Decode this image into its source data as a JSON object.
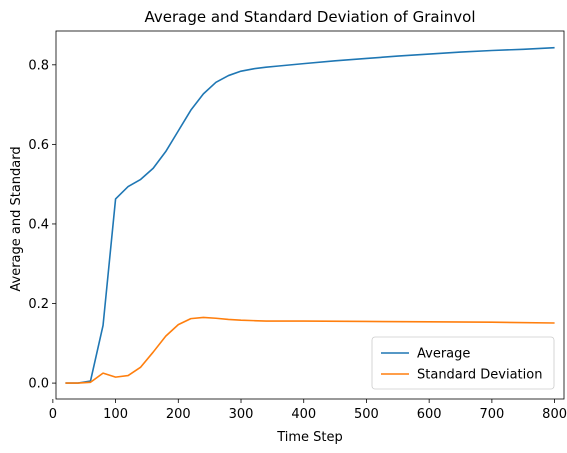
{
  "chart_data": {
    "type": "line",
    "title": "Average and Standard Deviation of Grainvol",
    "xlabel": "Time Step",
    "ylabel": "Average and Standard",
    "xlim": [
      5,
      815
    ],
    "ylim": [
      -0.04,
      0.885
    ],
    "xticks": [
      0,
      100,
      200,
      300,
      400,
      500,
      600,
      700,
      800
    ],
    "yticks": [
      0.0,
      0.2,
      0.4,
      0.6,
      0.8
    ],
    "xtick_labels": [
      "0",
      "100",
      "200",
      "300",
      "400",
      "500",
      "600",
      "700",
      "800"
    ],
    "ytick_labels": [
      "0.0",
      "0.2",
      "0.4",
      "0.6",
      "0.8"
    ],
    "grid": false,
    "legend": {
      "position": "bottom-right"
    },
    "series": [
      {
        "name": "Average",
        "color": "#1f77b4",
        "points": [
          [
            20,
            0.0
          ],
          [
            40,
            0.0
          ],
          [
            60,
            0.005
          ],
          [
            80,
            0.145
          ],
          [
            100,
            0.463
          ],
          [
            120,
            0.494
          ],
          [
            140,
            0.512
          ],
          [
            160,
            0.54
          ],
          [
            180,
            0.582
          ],
          [
            200,
            0.634
          ],
          [
            220,
            0.686
          ],
          [
            240,
            0.727
          ],
          [
            260,
            0.756
          ],
          [
            280,
            0.773
          ],
          [
            300,
            0.784
          ],
          [
            320,
            0.79
          ],
          [
            340,
            0.794
          ],
          [
            360,
            0.797
          ],
          [
            400,
            0.803
          ],
          [
            450,
            0.81
          ],
          [
            500,
            0.816
          ],
          [
            550,
            0.822
          ],
          [
            600,
            0.827
          ],
          [
            650,
            0.832
          ],
          [
            700,
            0.836
          ],
          [
            750,
            0.839
          ],
          [
            800,
            0.843
          ]
        ]
      },
      {
        "name": "Standard Deviation",
        "color": "#ff7f0e",
        "points": [
          [
            20,
            0.0
          ],
          [
            40,
            0.0
          ],
          [
            60,
            0.002
          ],
          [
            80,
            0.025
          ],
          [
            100,
            0.015
          ],
          [
            120,
            0.019
          ],
          [
            140,
            0.04
          ],
          [
            160,
            0.078
          ],
          [
            180,
            0.118
          ],
          [
            200,
            0.147
          ],
          [
            220,
            0.162
          ],
          [
            240,
            0.165
          ],
          [
            260,
            0.163
          ],
          [
            280,
            0.16
          ],
          [
            300,
            0.158
          ],
          [
            320,
            0.157
          ],
          [
            340,
            0.156
          ],
          [
            400,
            0.156
          ],
          [
            500,
            0.155
          ],
          [
            600,
            0.154
          ],
          [
            700,
            0.153
          ],
          [
            800,
            0.151
          ]
        ]
      }
    ]
  }
}
